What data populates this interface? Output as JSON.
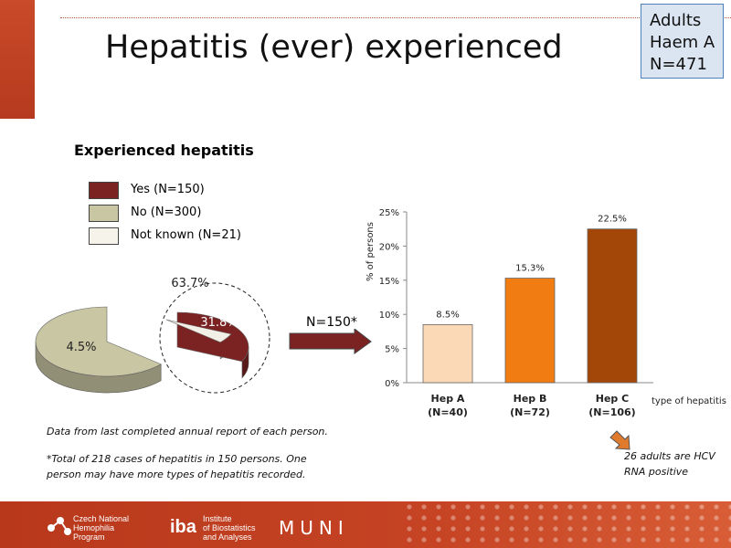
{
  "slide": {
    "title": "Hepatitis (ever) experienced",
    "badge": [
      "Adults",
      "Haem A",
      "N=471"
    ]
  },
  "pie": {
    "subtitle": "Experienced hepatitis",
    "legend": [
      {
        "label": "Yes (N=150)",
        "color": "#7b2323"
      },
      {
        "label": "No (N=300)",
        "color": "#c9c6a3"
      },
      {
        "label": "Not known (N=21)",
        "color": "#f2f0e6"
      }
    ]
  },
  "arrow_label": "N=150*",
  "chart_data": [
    {
      "type": "pie",
      "title": "Experienced hepatitis",
      "categories": [
        "Yes (N=150)",
        "No (N=300)",
        "Not known (N=21)"
      ],
      "values": [
        31.8,
        63.7,
        4.5
      ],
      "labels": [
        "31.8%",
        "63.7%",
        "4.5%"
      ],
      "colors": [
        "#7b2323",
        "#c9c6a3",
        "#f2f0e6"
      ]
    },
    {
      "type": "bar",
      "categories": [
        "Hep A",
        "Hep B",
        "Hep C"
      ],
      "category_sublabels": [
        "(N=40)",
        "(N=72)",
        "(N=106)"
      ],
      "values": [
        8.5,
        15.3,
        22.5
      ],
      "value_labels": [
        "8.5%",
        "15.3%",
        "22.5%"
      ],
      "colors": [
        "#fcd9b6",
        "#f07c12",
        "#a34709"
      ],
      "xlabel": "type of hepatitis",
      "ylabel": "% of persons",
      "ylim": [
        0,
        25
      ],
      "yticks": [
        "0%",
        "5%",
        "10%",
        "15%",
        "20%",
        "25%"
      ],
      "grid": false
    }
  ],
  "notes": {
    "data_source": "Data from last completed annual report of each person.",
    "total_line1": "*Total of 218 cases of hepatitis in 150 persons. One",
    "total_line2": "person may have more types of hepatitis recorded.",
    "hcv_line1": "26 adults are HCV",
    "hcv_line2": "RNA positive"
  },
  "footer": {
    "cnhp_lines": [
      "Czech National",
      "Hemophilia",
      "Program"
    ],
    "iba_logo": "iba",
    "iba_lines": [
      "Institute",
      "of Biostatistics",
      "and Analyses"
    ],
    "muni": "MUNI"
  }
}
